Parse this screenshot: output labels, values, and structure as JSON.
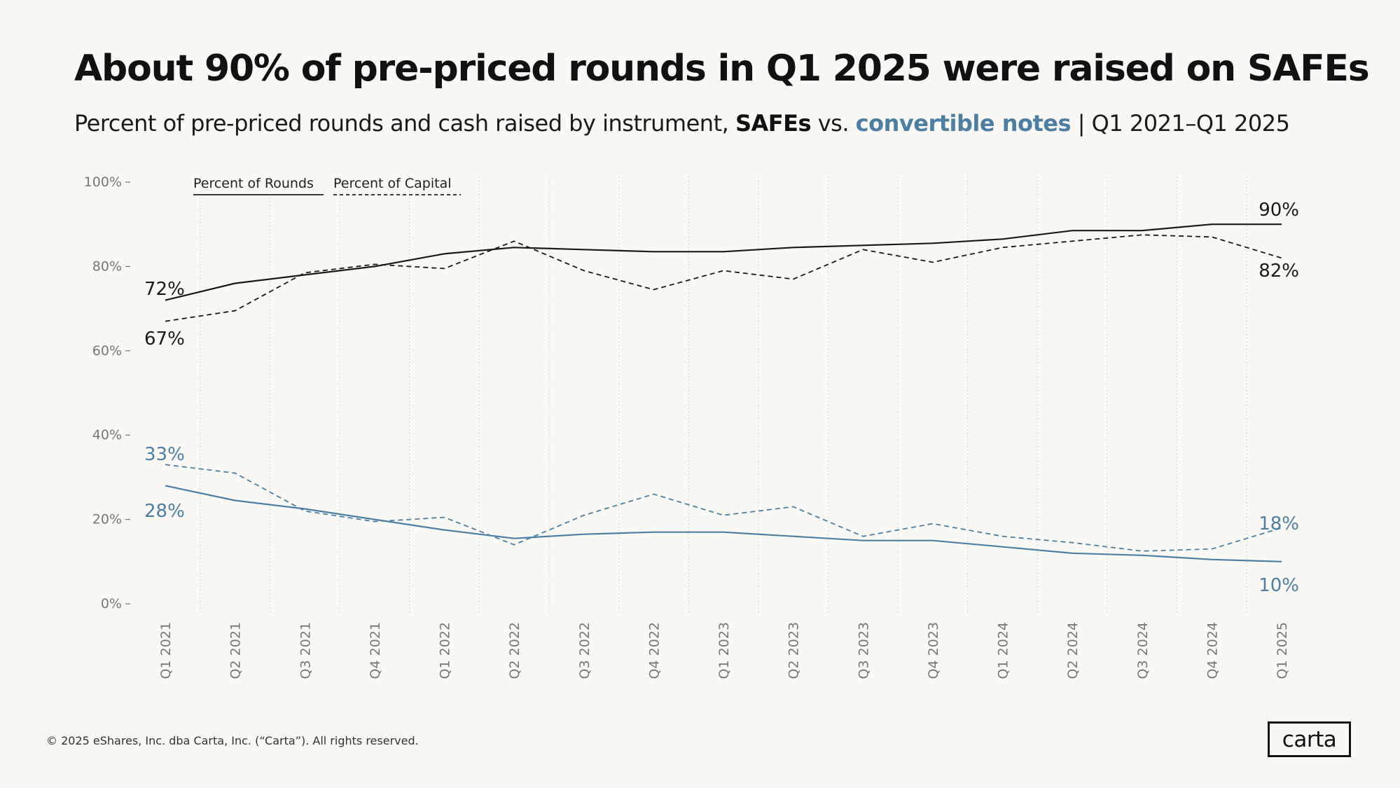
{
  "header": {
    "title": "About 90% of pre-priced rounds in Q1 2025 were raised on SAFEs",
    "subtitle_prefix": "Percent of pre-priced rounds and cash raised by instrument,",
    "subtitle_safes": "SAFEs",
    "subtitle_vs": "vs.",
    "subtitle_notes": "convertible notes",
    "subtitle_suffix": "| Q1 2021–Q1 2025"
  },
  "footer": {
    "copyright": "© 2025 eShares, Inc. dba Carta, Inc. (“Carta”). All rights reserved.",
    "logo": "carta"
  },
  "colors": {
    "safes": "#1a1a1a",
    "notes": "#4e7fa3",
    "background": "#faf8f4"
  },
  "chart_data": {
    "type": "line",
    "title": "",
    "xlabel": "",
    "ylabel": "",
    "ylim": [
      0,
      100
    ],
    "yticks": [
      "0%",
      "20%",
      "40%",
      "60%",
      "80%",
      "100%"
    ],
    "ytick_values": [
      0,
      20,
      40,
      60,
      80,
      100
    ],
    "grid": "vertical dotted",
    "legend": {
      "placement": "top-left",
      "entries": [
        {
          "label": "Percent of Rounds",
          "style": "solid"
        },
        {
          "label": "Percent of Capital",
          "style": "dashed"
        }
      ]
    },
    "categories": [
      "Q1 2021",
      "Q2 2021",
      "Q3 2021",
      "Q4 2021",
      "Q1 2022",
      "Q2 2022",
      "Q3 2022",
      "Q4 2022",
      "Q1 2023",
      "Q2 2023",
      "Q3 2023",
      "Q4 2023",
      "Q1 2024",
      "Q2 2024",
      "Q3 2024",
      "Q4 2024",
      "Q1 2025"
    ],
    "series": [
      {
        "instrument": "SAFEs",
        "measure": "Percent of Rounds",
        "style": "solid",
        "color": "#1a1a1a",
        "values": [
          72,
          76,
          78,
          80,
          83,
          84.5,
          84,
          83.5,
          83.5,
          84.5,
          85,
          85.5,
          86.5,
          88.5,
          88.5,
          90,
          90
        ],
        "end_labels": {
          "start": "72%",
          "end": "90%"
        }
      },
      {
        "instrument": "SAFEs",
        "measure": "Percent of Capital",
        "style": "dashed",
        "color": "#1a1a1a",
        "values": [
          67,
          69.5,
          78.5,
          80.5,
          79.5,
          86,
          79,
          74.5,
          79,
          77,
          84,
          81,
          84.5,
          86,
          87.5,
          87,
          82
        ],
        "end_labels": {
          "start": "67%",
          "end": "82%"
        }
      },
      {
        "instrument": "convertible notes",
        "measure": "Percent of Rounds",
        "style": "solid",
        "color": "#4e7fa3",
        "values": [
          28,
          24.5,
          22.5,
          20,
          17.5,
          15.5,
          16.5,
          17,
          17,
          16,
          15,
          15,
          13.5,
          12,
          11.5,
          10.5,
          10
        ],
        "end_labels": {
          "start": "28%",
          "end": "10%"
        }
      },
      {
        "instrument": "convertible notes",
        "measure": "Percent of Capital",
        "style": "dashed",
        "color": "#4e7fa3",
        "values": [
          33,
          31,
          22,
          19.5,
          20.5,
          14,
          21,
          26,
          21,
          23,
          16,
          19,
          16,
          14.5,
          12.5,
          13,
          18
        ],
        "end_labels": {
          "start": "33%",
          "end": "18%"
        }
      }
    ]
  }
}
